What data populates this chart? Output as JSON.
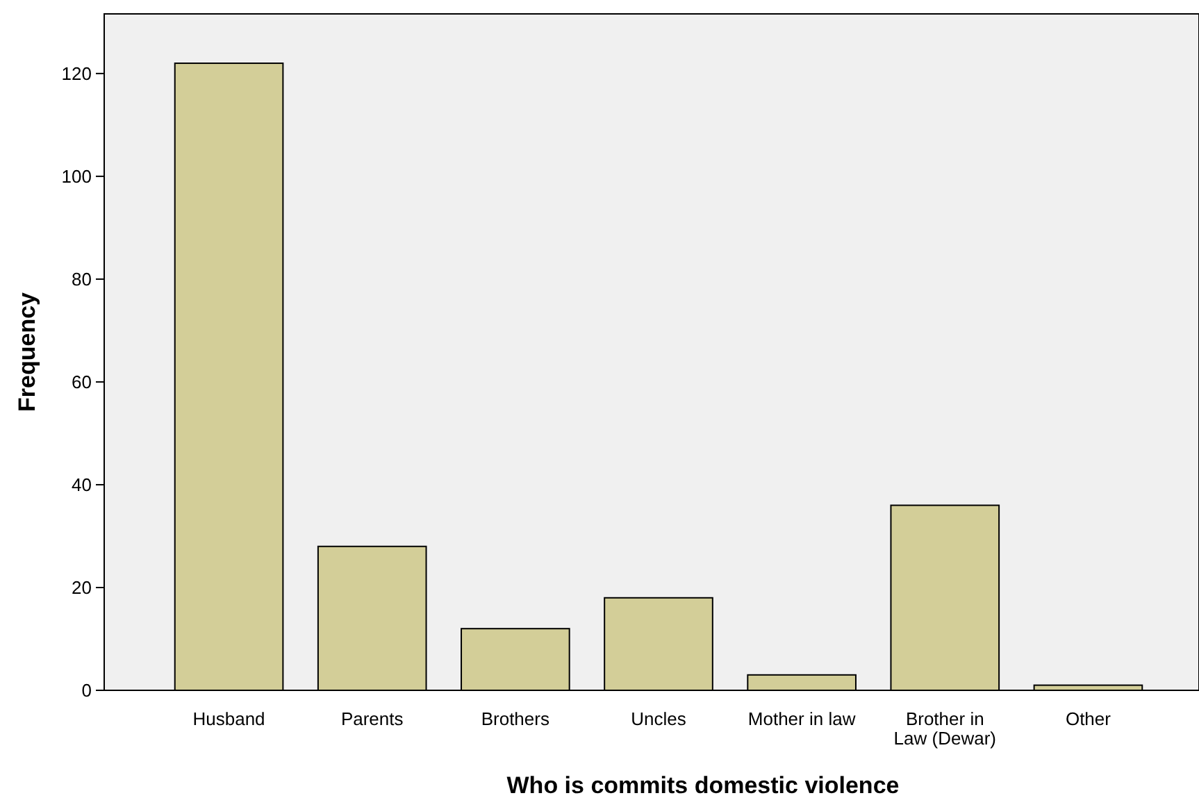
{
  "chart_data": {
    "type": "bar",
    "xlabel": "Who is commits domestic violence",
    "ylabel": "Frequency",
    "categories": [
      "Husband",
      "Parents",
      "Brothers",
      "Uncles",
      "Mother in law",
      "Brother in Law (Dewar)",
      "Other"
    ],
    "values": [
      122,
      28,
      12,
      18,
      3,
      36,
      1
    ],
    "color": "#d3ce98",
    "ylim": [
      0,
      131.6
    ],
    "yticks": [
      0,
      20,
      40,
      60,
      80,
      100,
      120
    ],
    "grid": false
  }
}
